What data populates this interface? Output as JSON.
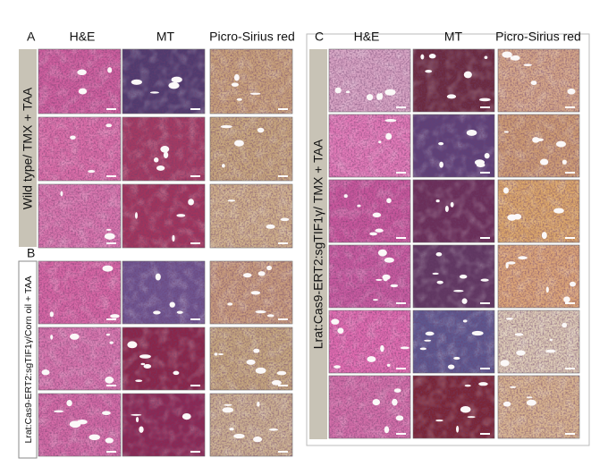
{
  "panels": [
    {
      "label": "A",
      "columns": [
        "H&E",
        "MT",
        "Picro-Sirius red"
      ],
      "row_label": "Wild type/ TMX + TAA"
    },
    {
      "label": "B",
      "row_label": "Lrat:Cas9-ERT2:sgTIF1γ/Corn oil + TAA"
    },
    {
      "label": "C",
      "columns": [
        "H&E",
        "MT",
        "Picro-Sirius red"
      ],
      "row_label": "Lrat:Cas9-ERT2:sgTIF1γ/ TMX + TAA"
    }
  ]
}
